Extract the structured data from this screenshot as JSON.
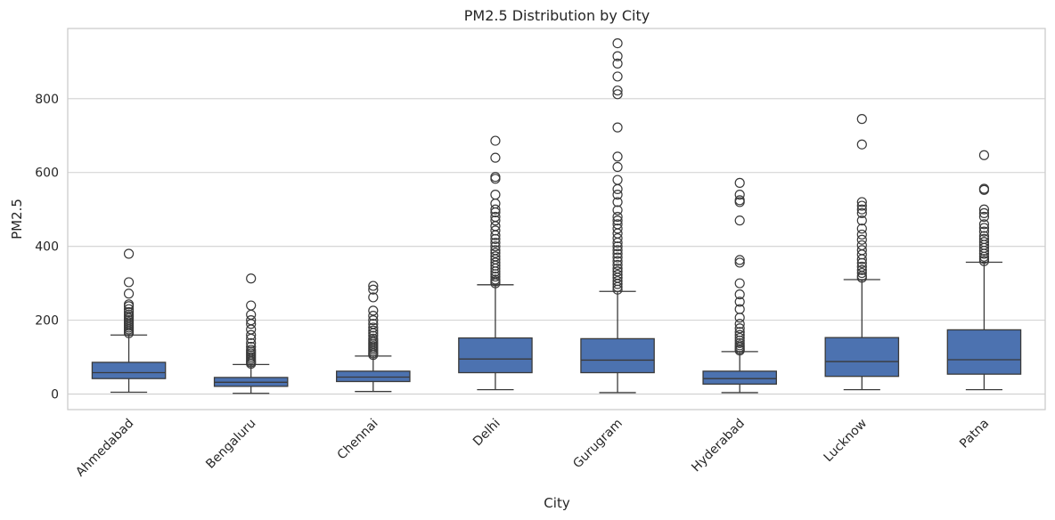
{
  "chart_data": {
    "type": "box",
    "title": "PM2.5 Distribution by City",
    "xlabel": "City",
    "ylabel": "PM2.5",
    "ylim": [
      -42,
      990
    ],
    "yticks": [
      0,
      200,
      400,
      600,
      800
    ],
    "grid": true,
    "box_color": "#4c72b0",
    "line_color": "#3a3a3a",
    "categories": [
      "Ahmedabad",
      "Bengaluru",
      "Chennai",
      "Delhi",
      "Gurugram",
      "Hyderabad",
      "Lucknow",
      "Patna"
    ],
    "boxes": [
      {
        "city": "Ahmedabad",
        "whisker_low": 5,
        "q1": 42,
        "median": 58,
        "q3": 86,
        "whisker_high": 160,
        "outliers": [
          165,
          170,
          175,
          180,
          185,
          190,
          195,
          200,
          205,
          210,
          215,
          222,
          230,
          238,
          243,
          272,
          303,
          380
        ]
      },
      {
        "city": "Bengaluru",
        "whisker_low": 2,
        "q1": 21,
        "median": 32,
        "q3": 45,
        "whisker_high": 80,
        "outliers": [
          82,
          86,
          90,
          95,
          100,
          105,
          110,
          115,
          120,
          128,
          138,
          150,
          160,
          175,
          190,
          200,
          215,
          240,
          313
        ]
      },
      {
        "city": "Chennai",
        "whisker_low": 7,
        "q1": 34,
        "median": 46,
        "q3": 62,
        "whisker_high": 103,
        "outliers": [
          106,
          110,
          115,
          120,
          125,
          130,
          135,
          140,
          145,
          150,
          158,
          165,
          172,
          180,
          190,
          200,
          212,
          226,
          262,
          283,
          293
        ]
      },
      {
        "city": "Delhi",
        "whisker_low": 12,
        "q1": 58,
        "median": 95,
        "q3": 152,
        "whisker_high": 296,
        "outliers": [
          300,
          305,
          310,
          318,
          325,
          332,
          340,
          348,
          356,
          365,
          373,
          382,
          390,
          400,
          410,
          420,
          430,
          443,
          455,
          470,
          480,
          492,
          500,
          516,
          540,
          583,
          588,
          640,
          686
        ]
      },
      {
        "city": "Gurugram",
        "whisker_low": 4,
        "q1": 58,
        "median": 92,
        "q3": 150,
        "whisker_high": 278,
        "outliers": [
          283,
          290,
          298,
          306,
          315,
          323,
          332,
          340,
          350,
          360,
          370,
          380,
          390,
          400,
          410,
          422,
          435,
          448,
          460,
          470,
          480,
          498,
          520,
          540,
          555,
          580,
          615,
          643,
          722,
          812,
          822,
          860,
          895,
          915,
          950
        ]
      },
      {
        "city": "Hyderabad",
        "whisker_low": 4,
        "q1": 27,
        "median": 42,
        "q3": 62,
        "whisker_high": 115,
        "outliers": [
          118,
          122,
          127,
          132,
          138,
          145,
          152,
          160,
          168,
          178,
          190,
          207,
          230,
          250,
          270,
          300,
          356,
          363,
          470,
          520,
          525,
          540,
          572
        ]
      },
      {
        "city": "Lucknow",
        "whisker_low": 12,
        "q1": 48,
        "median": 88,
        "q3": 153,
        "whisker_high": 310,
        "outliers": [
          315,
          320,
          328,
          336,
          345,
          355,
          365,
          378,
          390,
          403,
          418,
          432,
          448,
          470,
          490,
          500,
          510,
          520,
          676,
          745
        ]
      },
      {
        "city": "Patna",
        "whisker_low": 12,
        "q1": 54,
        "median": 93,
        "q3": 174,
        "whisker_high": 357,
        "outliers": [
          360,
          366,
          372,
          380,
          388,
          396,
          404,
          412,
          420,
          428,
          440,
          450,
          460,
          480,
          490,
          500,
          553,
          556,
          647
        ]
      }
    ]
  }
}
